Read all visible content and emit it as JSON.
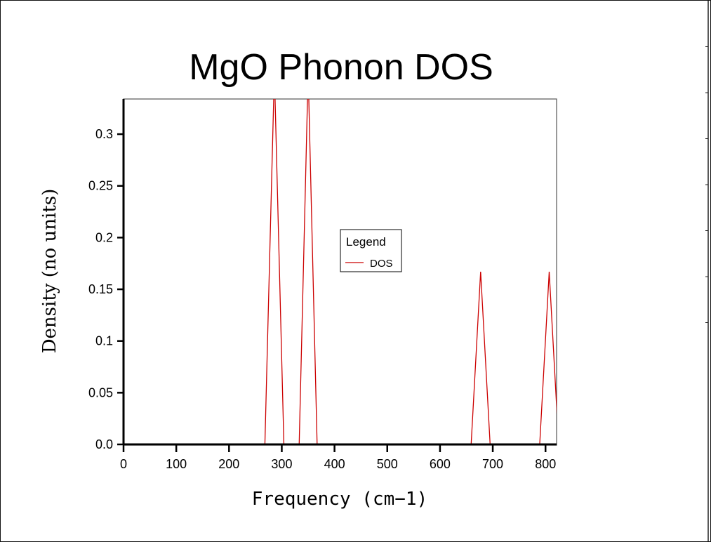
{
  "chart_data": {
    "type": "line",
    "title": "MgO Phonon DOS",
    "xlabel": "Frequency (cm−1)",
    "ylabel": "Density (no units)",
    "xlim": [
      0,
      821
    ],
    "ylim": [
      0,
      0.334
    ],
    "xticks": [
      0,
      100,
      200,
      300,
      400,
      500,
      600,
      700,
      800
    ],
    "xtick_labels": [
      "0",
      "100",
      "200",
      "300",
      "400",
      "500",
      "600",
      "700",
      "800"
    ],
    "yticks": [
      0,
      0.05,
      0.1,
      0.15,
      0.2,
      0.25,
      0.3
    ],
    "ytick_labels": [
      "0.0",
      "0.05",
      "0.1",
      "0.15",
      "0.2",
      "0.25",
      "0.3"
    ],
    "grid": false,
    "legend": {
      "title": "Legend",
      "placement": "center",
      "entries": [
        "DOS"
      ]
    },
    "series": [
      {
        "name": "DOS",
        "color": "#cc0000",
        "x": [
          0,
          268,
          286,
          304,
          333,
          350,
          367,
          659,
          677,
          695,
          789,
          807,
          825
        ],
        "y": [
          0,
          0,
          0.36,
          0,
          0,
          0.36,
          0,
          0,
          0.167,
          0,
          0,
          0.167,
          0
        ]
      }
    ]
  }
}
